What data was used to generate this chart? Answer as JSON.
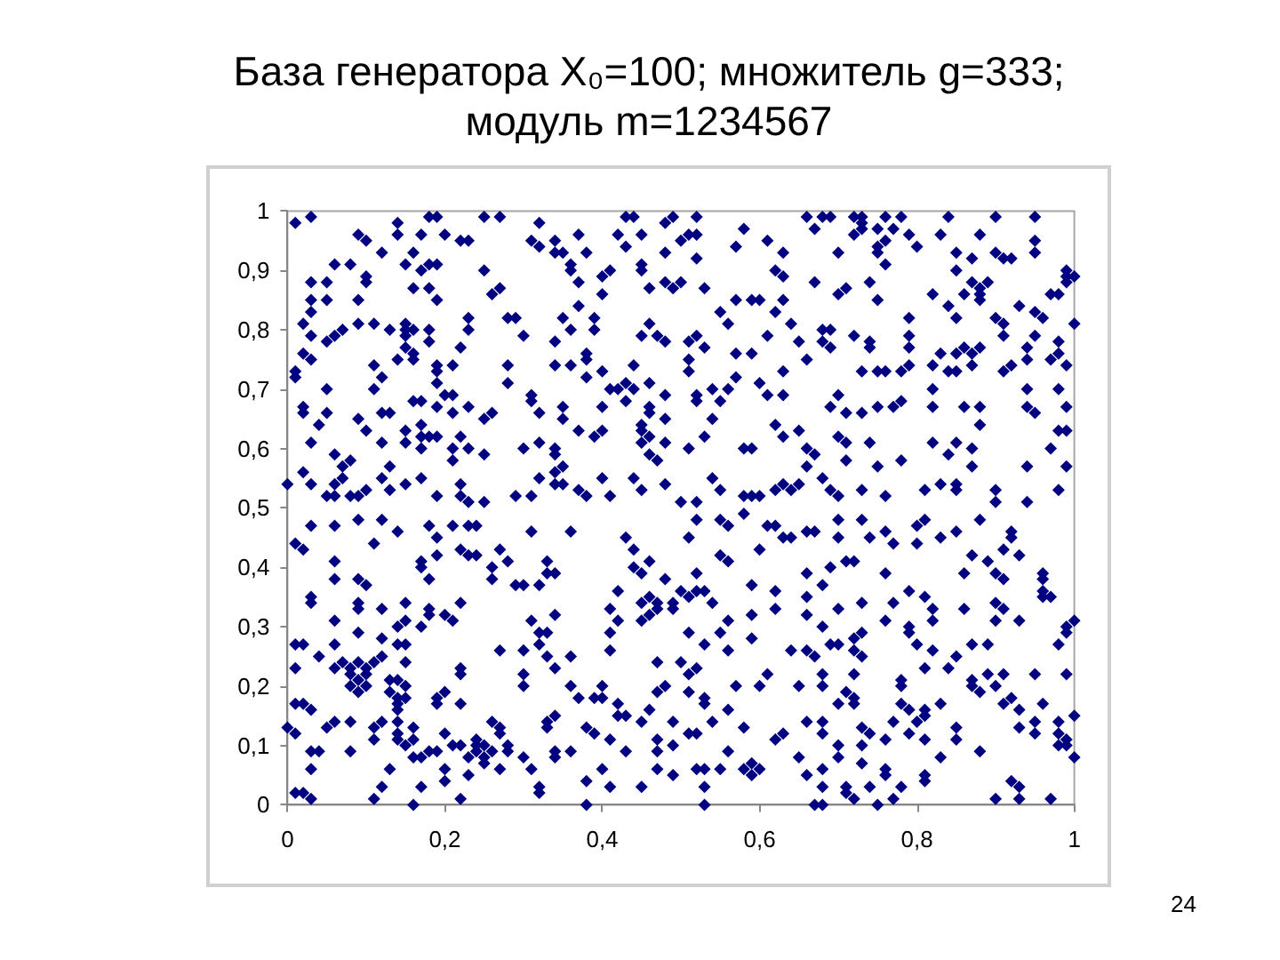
{
  "chart_data": {
    "type": "scatter",
    "title": "База генератора X₀=100; множитель g=333; модуль m=1234567",
    "annotations": [
      "24"
    ],
    "color": "#000080",
    "marker": "diamond",
    "xlim": [
      0,
      1
    ],
    "ylim": [
      0,
      1
    ],
    "xticks": [
      0,
      {
        "value": 0.2,
        "label": "0,2"
      },
      {
        "value": 0.4,
        "label": "0,4"
      },
      {
        "value": 0.6,
        "label": "0,6"
      },
      {
        "value": 0.8,
        "label": "0,8"
      },
      1
    ],
    "yticks": [
      0,
      {
        "value": 0.1,
        "label": "0,1"
      },
      {
        "value": 0.2,
        "label": "0,2"
      },
      {
        "value": 0.3,
        "label": "0,3"
      },
      {
        "value": 0.4,
        "label": "0,4"
      },
      {
        "value": 0.5,
        "label": "0,5"
      },
      {
        "value": 0.6,
        "label": "0,6"
      },
      {
        "value": 0.7,
        "label": "0,7"
      },
      {
        "value": 0.8,
        "label": "0,8"
      },
      {
        "value": 0.9,
        "label": "0,9"
      },
      1
    ],
    "x": [
      0.01,
      0.03,
      0.14,
      0.18,
      0.19,
      0.25,
      0.27,
      0.09,
      0.1,
      0.14,
      0.17,
      0.2,
      0.22,
      0.23,
      0.12,
      0.16,
      0.06,
      0.08,
      0.15,
      0.18,
      0.17,
      0.19,
      0.25,
      0.03,
      0.05,
      0.1,
      0.1,
      0.16,
      0.18,
      0.19,
      0.26,
      0.27,
      0.03,
      0.05,
      0.09,
      0.03,
      0.02,
      0.03,
      0.05,
      0.06,
      0.07,
      0.09,
      0.11,
      0.13,
      0.15,
      0.15,
      0.16,
      0.18,
      0.15,
      0.23,
      0.23,
      0.28,
      0.18,
      0.02,
      0.03,
      0.01,
      0.01,
      0.15,
      0.16,
      0.16,
      0.14,
      0.22,
      0.11,
      0.12,
      0.19,
      0.21,
      0.19,
      0.19,
      0.28,
      0.28,
      0.05,
      0.11,
      0.16,
      0.17,
      0.2,
      0.21,
      0.19,
      0.23,
      0.02,
      0.02,
      0.05,
      0.09,
      0.12,
      0.13,
      0.17,
      0.21,
      0.25,
      0.26,
      0.04,
      0.1,
      0.15,
      0.17,
      0.18,
      0.19,
      0.22,
      0.03,
      0.12,
      0.15,
      0.21,
      0.23,
      0.17,
      0.21,
      0.25,
      0.06,
      0.08,
      0.07,
      0.13,
      0.07,
      0.06,
      0.02,
      0.03,
      0.0,
      0.12,
      0.15,
      0.17,
      0.22,
      0.08,
      0.09,
      0.1,
      0.13,
      0.05,
      0.06,
      0.19,
      0.22,
      0.23,
      0.25,
      0.32,
      0.31,
      0.34,
      0.32,
      0.34,
      0.35,
      0.37,
      0.36,
      0.36,
      0.38,
      0.37,
      0.4,
      0.41,
      0.42,
      0.43,
      0.44,
      0.45,
      0.43,
      0.48,
      0.49,
      0.52,
      0.51,
      0.52,
      0.5,
      0.48,
      0.45,
      0.45,
      0.52,
      0.5,
      0.48,
      0.46,
      0.49,
      0.53,
      0.58,
      0.57,
      0.61,
      0.63,
      0.62,
      0.63,
      0.66,
      0.67,
      0.67,
      0.4,
      0.37,
      0.35,
      0.36,
      0.39,
      0.39,
      0.3,
      0.29,
      0.57,
      0.59,
      0.6,
      0.63,
      0.55,
      0.56,
      0.62,
      0.64,
      0.46,
      0.45,
      0.47,
      0.48,
      0.51,
      0.52,
      0.53,
      0.61,
      0.65,
      0.66,
      0.34,
      0.38,
      0.38,
      0.34,
      0.36,
      0.4,
      0.38,
      0.44,
      0.43,
      0.42,
      0.44,
      0.41,
      0.46,
      0.51,
      0.51,
      0.57,
      0.59,
      0.57,
      0.54,
      0.56,
      0.52,
      0.52,
      0.6,
      0.61,
      0.63,
      0.63,
      0.31,
      0.31,
      0.32,
      0.35,
      0.35,
      0.4,
      0.43,
      0.46,
      0.46,
      0.48,
      0.48,
      0.45,
      0.45,
      0.46,
      0.48,
      0.53,
      0.51,
      0.55,
      0.54,
      0.62,
      0.63,
      0.65,
      0.66,
      0.37,
      0.39,
      0.4,
      0.3,
      0.32,
      0.34,
      0.34,
      0.45,
      0.46,
      0.47,
      0.58,
      0.59,
      0.35,
      0.34,
      0.32,
      0.34,
      0.35,
      0.37,
      0.38,
      0.4,
      0.41,
      0.44,
      0.45,
      0.48,
      0.54,
      0.55,
      0.5,
      0.52,
      0.58,
      0.59,
      0.6,
      0.62,
      0.63,
      0.64,
      0.65,
      0.29,
      0.31,
      0.66,
      0.68,
      0.69,
      0.72,
      0.73,
      0.73,
      0.76,
      0.78,
      0.84,
      0.9,
      0.95,
      0.73,
      0.72,
      0.75,
      0.77,
      0.76,
      0.75,
      0.75,
      0.7,
      0.79,
      0.8,
      0.83,
      0.88,
      0.95,
      0.85,
      0.87,
      0.9,
      0.91,
      0.92,
      0.95,
      0.76,
      0.85,
      0.99,
      0.99,
      1.0,
      0.99,
      0.7,
      0.71,
      0.74,
      0.75,
      0.82,
      0.84,
      0.86,
      0.87,
      0.88,
      0.89,
      0.88,
      0.88,
      0.93,
      0.97,
      0.98,
      0.79,
      0.85,
      0.9,
      0.91,
      0.95,
      0.96,
      1.0,
      0.68,
      0.69,
      0.91,
      0.95,
      0.72,
      0.74,
      0.79,
      0.68,
      0.69,
      0.74,
      0.79,
      0.83,
      0.85,
      0.86,
      0.88,
      0.87,
      0.87,
      0.85,
      0.84,
      0.82,
      0.79,
      0.78,
      0.76,
      0.75,
      0.73,
      0.91,
      0.92,
      0.94,
      0.94,
      0.97,
      0.98,
      0.99,
      0.98,
      0.82,
      0.7,
      0.69,
      0.71,
      0.73,
      0.75,
      0.78,
      0.77,
      0.82,
      0.86,
      0.88,
      0.94,
      0.94,
      0.95,
      0.98,
      0.99,
      0.98,
      0.99,
      0.88,
      0.7,
      0.71,
      0.74,
      0.82,
      0.85,
      0.84,
      0.87,
      0.67,
      0.71,
      0.75,
      0.78,
      0.87,
      0.97,
      0.99,
      0.94,
      0.68,
      0.69,
      0.7,
      0.73,
      0.76,
      0.81,
      0.83,
      0.85,
      0.85,
      0.9,
      0.9,
      0.94,
      0.98,
      0.01,
      0.02,
      0.11,
      0.06,
      0.06,
      0.09,
      0.03,
      0.12,
      0.14,
      0.18,
      0.19,
      0.19,
      0.21,
      0.23,
      0.24,
      0.22,
      0.23,
      0.24,
      0.27,
      0.28,
      0.26,
      0.26,
      0.17,
      0.17,
      0.06,
      0.09,
      0.1,
      0.18,
      0.03,
      0.03,
      0.09,
      0.09,
      0.15,
      0.18,
      0.18,
      0.17,
      0.2,
      0.21,
      0.22,
      0.12,
      0.14,
      0.15,
      0.06,
      0.09,
      0.12,
      0.14,
      0.15,
      0.01,
      0.02,
      0.06,
      0.04,
      0.06,
      0.07,
      0.08,
      0.09,
      0.11,
      0.12,
      0.08,
      0.09,
      0.1,
      0.1,
      0.01,
      0.08,
      0.1,
      0.09,
      0.13,
      0.13,
      0.14,
      0.15,
      0.14,
      0.14,
      0.14,
      0.14,
      0.15,
      0.15,
      0.22,
      0.22,
      0.27,
      0.19,
      0.2,
      0.19,
      0.22,
      0.01,
      0.02,
      0.03,
      0.0,
      0.01,
      0.05,
      0.06,
      0.08,
      0.11,
      0.12,
      0.11,
      0.14,
      0.14,
      0.16,
      0.16,
      0.15,
      0.03,
      0.04,
      0.08,
      0.17,
      0.16,
      0.18,
      0.2,
      0.19,
      0.21,
      0.22,
      0.24,
      0.23,
      0.24,
      0.25,
      0.26,
      0.27,
      0.27,
      0.24,
      0.26,
      0.28,
      0.28,
      0.25,
      0.25,
      0.27,
      0.03,
      0.13,
      0.2,
      0.23,
      0.01,
      0.02,
      0.03,
      0.12,
      0.11,
      0.17,
      0.16,
      0.2,
      0.22,
      0.31,
      0.36,
      0.43,
      0.44,
      0.46,
      0.44,
      0.45,
      0.33,
      0.33,
      0.34,
      0.29,
      0.3,
      0.32,
      0.51,
      0.52,
      0.55,
      0.56,
      0.58,
      0.6,
      0.61,
      0.62,
      0.63,
      0.64,
      0.66,
      0.55,
      0.56,
      0.52,
      0.66,
      0.42,
      0.41,
      0.42,
      0.41,
      0.41,
      0.45,
      0.46,
      0.47,
      0.49,
      0.49,
      0.47,
      0.46,
      0.45,
      0.48,
      0.5,
      0.51,
      0.52,
      0.53,
      0.54,
      0.59,
      0.62,
      0.59,
      0.62,
      0.56,
      0.55,
      0.53,
      0.51,
      0.56,
      0.59,
      0.66,
      0.66,
      0.64,
      0.66,
      0.67,
      0.31,
      0.32,
      0.33,
      0.34,
      0.32,
      0.3,
      0.33,
      0.34,
      0.36,
      0.47,
      0.5,
      0.51,
      0.52,
      0.3,
      0.3,
      0.36,
      0.37,
      0.39,
      0.4,
      0.4,
      0.47,
      0.48,
      0.51,
      0.53,
      0.57,
      0.6,
      0.61,
      0.65,
      0.42,
      0.43,
      0.42,
      0.46,
      0.45,
      0.49,
      0.53,
      0.54,
      0.56,
      0.33,
      0.34,
      0.33,
      0.38,
      0.39,
      0.41,
      0.47,
      0.51,
      0.52,
      0.58,
      0.62,
      0.63,
      0.66,
      0.34,
      0.34,
      0.36,
      0.43,
      0.47,
      0.49,
      0.56,
      0.65,
      0.3,
      0.31,
      0.38,
      0.4,
      0.41,
      0.47,
      0.49,
      0.52,
      0.53,
      0.55,
      0.58,
      0.59,
      0.59,
      0.6,
      0.66,
      0.45,
      0.53,
      0.32,
      0.32,
      0.38,
      0.53,
      0.67,
      0.7,
      0.73,
      0.67,
      0.7,
      0.74,
      0.76,
      0.77,
      0.8,
      0.81,
      0.83,
      0.8,
      0.85,
      0.88,
      0.92,
      0.92,
      0.91,
      0.93,
      0.87,
      0.86,
      0.89,
      0.9,
      0.91,
      0.96,
      0.96,
      0.96,
      0.72,
      0.71,
      0.69,
      0.68,
      0.7,
      0.73,
      0.76,
      0.79,
      0.77,
      0.81,
      0.82,
      0.82,
      0.76,
      0.79,
      0.79,
      0.8,
      0.86,
      0.9,
      0.9,
      0.91,
      0.93,
      0.96,
      0.97,
      0.99,
      0.99,
      1.0,
      0.98,
      0.68,
      0.69,
      0.7,
      0.72,
      0.73,
      0.72,
      0.73,
      0.82,
      0.85,
      0.87,
      0.89,
      0.81,
      0.84,
      0.68,
      0.72,
      0.78,
      0.78,
      0.87,
      0.89,
      0.87,
      0.88,
      0.9,
      0.91,
      0.95,
      0.99,
      0.71,
      0.72,
      0.72,
      0.68,
      0.7,
      0.78,
      0.77,
      0.79,
      0.8,
      0.81,
      0.81,
      0.83,
      0.79,
      0.81,
      0.83,
      0.91,
      0.92,
      0.93,
      0.96,
      1.0,
      0.95,
      0.98,
      0.93,
      0.95,
      0.98,
      0.99,
      0.98,
      0.99,
      1.0,
      0.85,
      0.85,
      0.88,
      0.68,
      0.68,
      0.7,
      0.7,
      0.73,
      0.74,
      0.76,
      0.73,
      0.73,
      0.76,
      0.76,
      0.81,
      0.81,
      0.78,
      0.74,
      0.71,
      0.71,
      0.68,
      0.68,
      0.68,
      0.72,
      0.75,
      0.77,
      0.9,
      0.92,
      0.93,
      0.93,
      0.97
    ],
    "values": [
      0.98,
      0.99,
      0.98,
      0.99,
      0.99,
      0.99,
      0.99,
      0.96,
      0.95,
      0.96,
      0.96,
      0.96,
      0.95,
      0.95,
      0.93,
      0.93,
      0.91,
      0.91,
      0.91,
      0.91,
      0.9,
      0.91,
      0.9,
      0.88,
      0.88,
      0.89,
      0.88,
      0.87,
      0.87,
      0.85,
      0.86,
      0.87,
      0.85,
      0.85,
      0.85,
      0.83,
      0.81,
      0.79,
      0.78,
      0.79,
      0.8,
      0.81,
      0.81,
      0.8,
      0.81,
      0.8,
      0.8,
      0.8,
      0.79,
      0.82,
      0.8,
      0.82,
      0.78,
      0.76,
      0.75,
      0.73,
      0.72,
      0.77,
      0.76,
      0.75,
      0.75,
      0.77,
      0.74,
      0.72,
      0.74,
      0.74,
      0.73,
      0.71,
      0.74,
      0.71,
      0.7,
      0.7,
      0.68,
      0.68,
      0.69,
      0.69,
      0.67,
      0.67,
      0.67,
      0.66,
      0.66,
      0.65,
      0.66,
      0.66,
      0.64,
      0.66,
      0.65,
      0.66,
      0.64,
      0.63,
      0.63,
      0.62,
      0.62,
      0.62,
      0.62,
      0.61,
      0.61,
      0.61,
      0.6,
      0.6,
      0.6,
      0.58,
      0.59,
      0.59,
      0.58,
      0.57,
      0.57,
      0.55,
      0.54,
      0.56,
      0.54,
      0.54,
      0.55,
      0.54,
      0.55,
      0.54,
      0.52,
      0.52,
      0.53,
      0.53,
      0.52,
      0.52,
      0.52,
      0.52,
      0.51,
      0.51,
      0.98,
      0.95,
      0.95,
      0.94,
      0.93,
      0.93,
      0.96,
      0.91,
      0.9,
      0.93,
      0.88,
      0.89,
      0.9,
      0.96,
      0.99,
      0.99,
      0.96,
      0.94,
      0.98,
      0.99,
      0.99,
      0.96,
      0.96,
      0.95,
      0.93,
      0.91,
      0.9,
      0.92,
      0.88,
      0.88,
      0.87,
      0.87,
      0.87,
      0.97,
      0.94,
      0.95,
      0.93,
      0.9,
      0.89,
      0.99,
      0.97,
      0.88,
      0.86,
      0.84,
      0.82,
      0.8,
      0.82,
      0.8,
      0.79,
      0.82,
      0.85,
      0.85,
      0.85,
      0.85,
      0.83,
      0.81,
      0.83,
      0.81,
      0.81,
      0.79,
      0.79,
      0.78,
      0.78,
      0.79,
      0.77,
      0.79,
      0.78,
      0.75,
      0.78,
      0.76,
      0.75,
      0.74,
      0.74,
      0.73,
      0.72,
      0.74,
      0.71,
      0.7,
      0.7,
      0.7,
      0.71,
      0.75,
      0.73,
      0.76,
      0.76,
      0.72,
      0.7,
      0.7,
      0.69,
      0.68,
      0.71,
      0.69,
      0.73,
      0.69,
      0.69,
      0.68,
      0.66,
      0.67,
      0.65,
      0.67,
      0.68,
      0.67,
      0.66,
      0.69,
      0.65,
      0.64,
      0.63,
      0.62,
      0.61,
      0.62,
      0.6,
      0.68,
      0.65,
      0.64,
      0.62,
      0.63,
      0.6,
      0.63,
      0.62,
      0.63,
      0.6,
      0.61,
      0.6,
      0.59,
      0.61,
      0.59,
      0.58,
      0.6,
      0.6,
      0.57,
      0.56,
      0.55,
      0.54,
      0.54,
      0.53,
      0.52,
      0.55,
      0.52,
      0.55,
      0.53,
      0.54,
      0.55,
      0.53,
      0.51,
      0.51,
      0.52,
      0.52,
      0.52,
      0.53,
      0.54,
      0.53,
      0.54,
      0.52,
      0.52,
      0.57,
      0.99,
      0.99,
      0.99,
      0.99,
      0.98,
      0.99,
      0.99,
      0.99,
      0.99,
      0.99,
      0.97,
      0.96,
      0.97,
      0.97,
      0.95,
      0.94,
      0.93,
      0.93,
      0.96,
      0.94,
      0.96,
      0.96,
      0.95,
      0.93,
      0.92,
      0.93,
      0.92,
      0.92,
      0.93,
      0.91,
      0.9,
      0.89,
      0.9,
      0.89,
      0.88,
      0.86,
      0.87,
      0.88,
      0.85,
      0.86,
      0.84,
      0.86,
      0.88,
      0.87,
      0.88,
      0.86,
      0.85,
      0.84,
      0.86,
      0.86,
      0.82,
      0.82,
      0.82,
      0.81,
      0.83,
      0.82,
      0.81,
      0.8,
      0.8,
      0.79,
      0.79,
      0.79,
      0.78,
      0.79,
      0.78,
      0.77,
      0.77,
      0.77,
      0.76,
      0.76,
      0.77,
      0.77,
      0.76,
      0.74,
      0.73,
      0.73,
      0.74,
      0.74,
      0.73,
      0.73,
      0.73,
      0.73,
      0.73,
      0.74,
      0.77,
      0.75,
      0.75,
      0.78,
      0.74,
      0.76,
      0.7,
      0.69,
      0.67,
      0.66,
      0.66,
      0.67,
      0.68,
      0.67,
      0.67,
      0.67,
      0.67,
      0.7,
      0.67,
      0.66,
      0.7,
      0.67,
      0.63,
      0.63,
      0.64,
      0.62,
      0.61,
      0.61,
      0.61,
      0.61,
      0.59,
      0.6,
      0.59,
      0.58,
      0.57,
      0.58,
      0.57,
      0.6,
      0.57,
      0.57,
      0.55,
      0.53,
      0.52,
      0.53,
      0.52,
      0.53,
      0.54,
      0.54,
      0.53,
      0.53,
      0.51,
      0.51,
      0.53,
      0.44,
      0.43,
      0.44,
      0.41,
      0.47,
      0.48,
      0.47,
      0.48,
      0.46,
      0.47,
      0.45,
      0.42,
      0.47,
      0.47,
      0.47,
      0.43,
      0.42,
      0.42,
      0.43,
      0.41,
      0.4,
      0.38,
      0.41,
      0.4,
      0.38,
      0.38,
      0.37,
      0.38,
      0.35,
      0.34,
      0.34,
      0.33,
      0.34,
      0.33,
      0.32,
      0.3,
      0.32,
      0.31,
      0.34,
      0.33,
      0.3,
      0.31,
      0.31,
      0.29,
      0.28,
      0.27,
      0.27,
      0.27,
      0.27,
      0.27,
      0.25,
      0.23,
      0.24,
      0.23,
      0.24,
      0.24,
      0.25,
      0.22,
      0.21,
      0.22,
      0.23,
      0.23,
      0.2,
      0.2,
      0.19,
      0.21,
      0.19,
      0.21,
      0.2,
      0.18,
      0.17,
      0.16,
      0.14,
      0.18,
      0.24,
      0.22,
      0.23,
      0.26,
      0.18,
      0.19,
      0.17,
      0.17,
      0.17,
      0.17,
      0.16,
      0.13,
      0.12,
      0.13,
      0.14,
      0.14,
      0.13,
      0.14,
      0.11,
      0.12,
      0.11,
      0.13,
      0.11,
      0.1,
      0.09,
      0.09,
      0.09,
      0.08,
      0.08,
      0.09,
      0.12,
      0.09,
      0.1,
      0.1,
      0.11,
      0.08,
      0.09,
      0.1,
      0.14,
      0.13,
      0.12,
      0.1,
      0.09,
      0.1,
      0.09,
      0.08,
      0.07,
      0.06,
      0.06,
      0.06,
      0.06,
      0.05,
      0.02,
      0.02,
      0.01,
      0.03,
      0.01,
      0.03,
      0.0,
      0.04,
      0.01,
      0.46,
      0.46,
      0.45,
      0.43,
      0.41,
      0.4,
      0.39,
      0.41,
      0.39,
      0.39,
      0.37,
      0.37,
      0.37,
      0.45,
      0.48,
      0.48,
      0.47,
      0.49,
      0.43,
      0.47,
      0.47,
      0.45,
      0.45,
      0.46,
      0.42,
      0.41,
      0.39,
      0.39,
      0.36,
      0.33,
      0.31,
      0.29,
      0.26,
      0.34,
      0.35,
      0.34,
      0.33,
      0.34,
      0.33,
      0.32,
      0.31,
      0.38,
      0.36,
      0.35,
      0.36,
      0.36,
      0.34,
      0.37,
      0.36,
      0.32,
      0.33,
      0.31,
      0.29,
      0.27,
      0.29,
      0.26,
      0.28,
      0.35,
      0.32,
      0.26,
      0.26,
      0.25,
      0.31,
      0.29,
      0.29,
      0.32,
      0.27,
      0.26,
      0.25,
      0.23,
      0.25,
      0.24,
      0.24,
      0.22,
      0.23,
      0.22,
      0.2,
      0.2,
      0.18,
      0.18,
      0.2,
      0.18,
      0.19,
      0.2,
      0.19,
      0.18,
      0.2,
      0.2,
      0.22,
      0.2,
      0.17,
      0.15,
      0.15,
      0.16,
      0.14,
      0.14,
      0.17,
      0.14,
      0.16,
      0.14,
      0.15,
      0.13,
      0.13,
      0.12,
      0.11,
      0.11,
      0.12,
      0.12,
      0.13,
      0.11,
      0.12,
      0.14,
      0.09,
      0.08,
      0.09,
      0.09,
      0.09,
      0.1,
      0.09,
      0.08,
      0.08,
      0.06,
      0.04,
      0.06,
      0.03,
      0.06,
      0.05,
      0.06,
      0.06,
      0.06,
      0.06,
      0.07,
      0.05,
      0.06,
      0.05,
      0.03,
      0.03,
      0.03,
      0.02,
      0.0,
      0.0,
      0.0,
      0.48,
      0.48,
      0.46,
      0.45,
      0.45,
      0.46,
      0.44,
      0.47,
      0.48,
      0.45,
      0.44,
      0.46,
      0.48,
      0.46,
      0.45,
      0.43,
      0.42,
      0.42,
      0.39,
      0.41,
      0.39,
      0.38,
      0.39,
      0.38,
      0.36,
      0.41,
      0.41,
      0.4,
      0.37,
      0.33,
      0.34,
      0.39,
      0.36,
      0.34,
      0.35,
      0.33,
      0.31,
      0.31,
      0.3,
      0.29,
      0.27,
      0.33,
      0.31,
      0.34,
      0.33,
      0.31,
      0.35,
      0.35,
      0.3,
      0.29,
      0.31,
      0.27,
      0.3,
      0.27,
      0.27,
      0.28,
      0.29,
      0.26,
      0.25,
      0.26,
      0.25,
      0.27,
      0.27,
      0.23,
      0.23,
      0.22,
      0.22,
      0.21,
      0.2,
      0.21,
      0.22,
      0.2,
      0.19,
      0.2,
      0.22,
      0.22,
      0.22,
      0.19,
      0.18,
      0.17,
      0.2,
      0.17,
      0.17,
      0.14,
      0.16,
      0.14,
      0.15,
      0.16,
      0.17,
      0.12,
      0.11,
      0.08,
      0.17,
      0.18,
      0.16,
      0.17,
      0.15,
      0.14,
      0.14,
      0.13,
      0.12,
      0.12,
      0.11,
      0.1,
      0.1,
      0.08,
      0.13,
      0.11,
      0.09,
      0.14,
      0.12,
      0.1,
      0.08,
      0.13,
      0.12,
      0.11,
      0.1,
      0.07,
      0.06,
      0.05,
      0.05,
      0.04,
      0.03,
      0.03,
      0.03,
      0.02,
      0.06,
      0.03,
      0.0,
      0.01,
      0.0,
      0.01,
      0.01,
      0.04,
      0.03,
      0.01,
      0.01
    ]
  }
}
